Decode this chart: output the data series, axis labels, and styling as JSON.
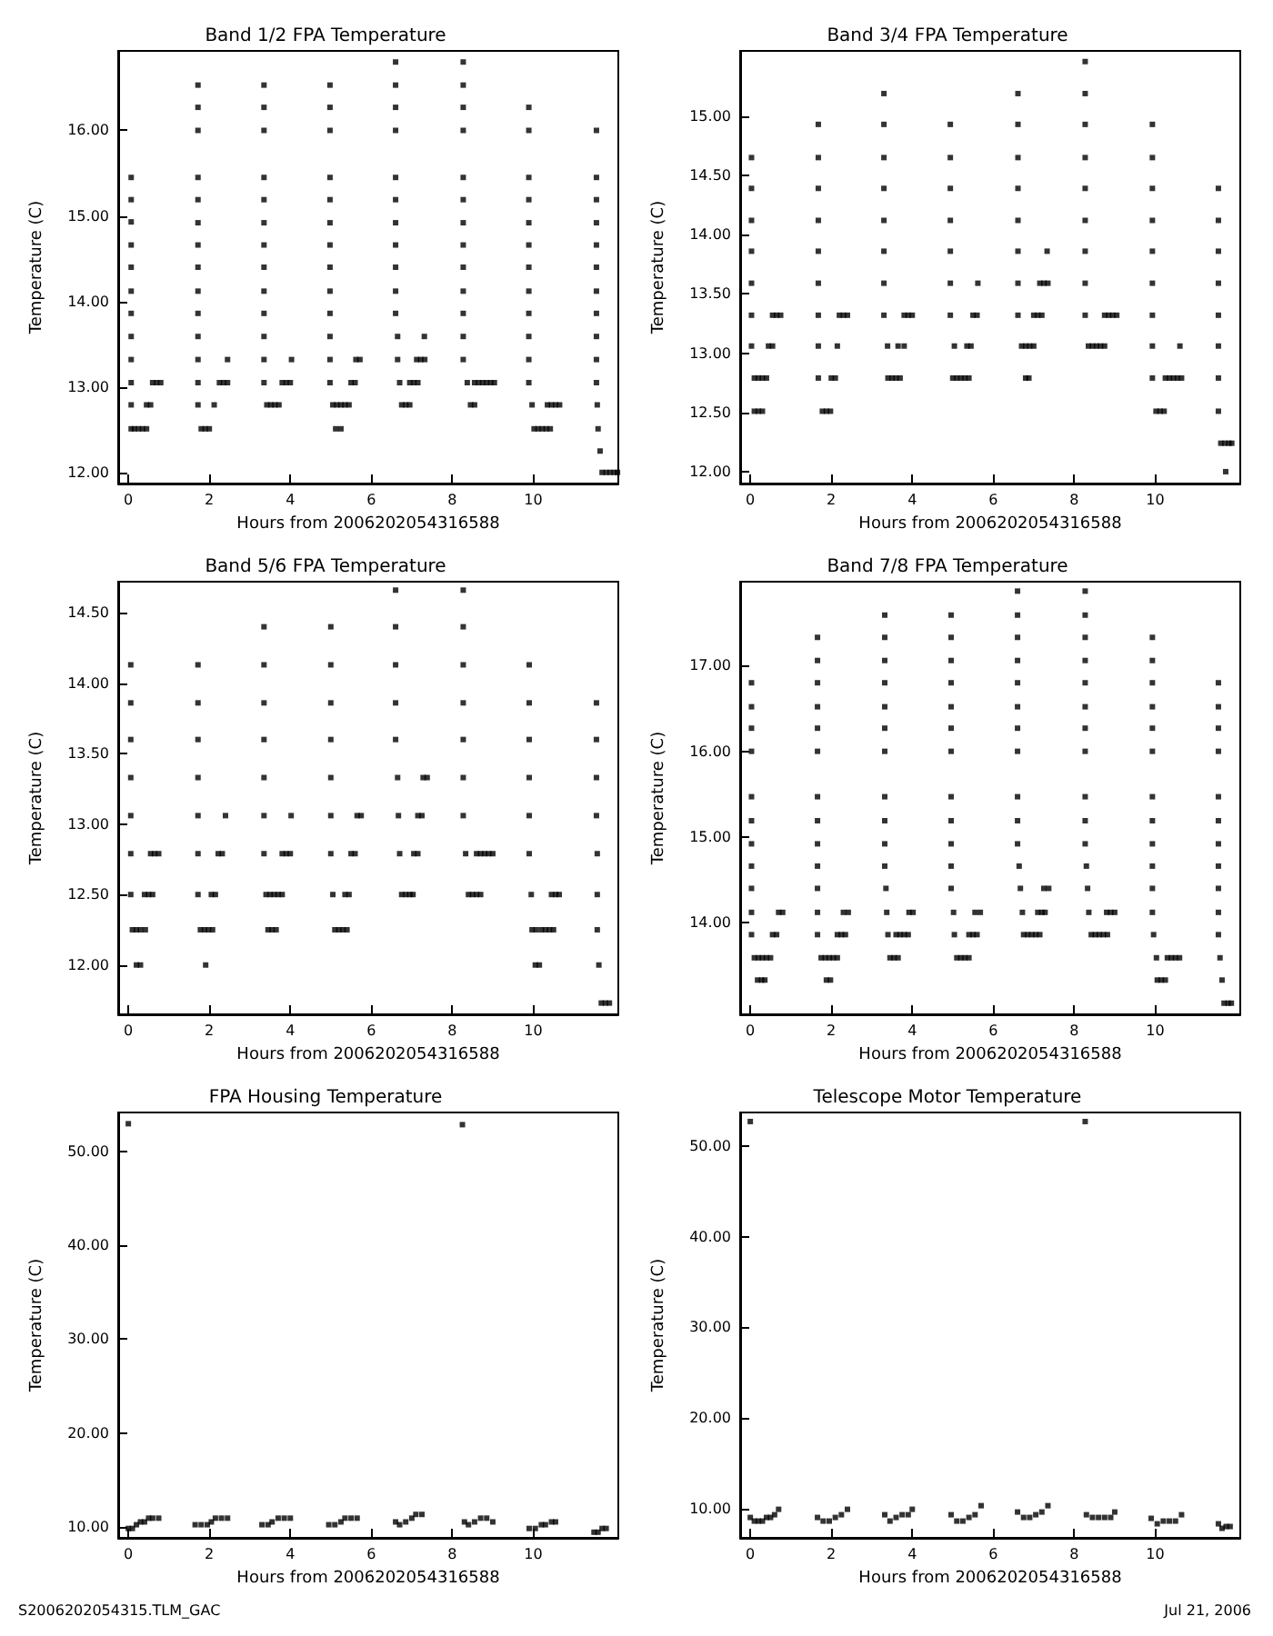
{
  "chart_data": [
    {
      "type": "scatter",
      "title": "Band 1/2 FPA Temperature",
      "xlabel": "Hours from 2006202054316588",
      "ylabel": "Temperature (C)",
      "color": "#000000",
      "marker": "square",
      "xlim": [
        -0.25,
        12.1
      ],
      "xticks": [
        0,
        2,
        4,
        6,
        8,
        10
      ],
      "ylim": [
        11.87,
        16.93
      ],
      "yticks": [
        {
          "value": 12,
          "label": "12.00"
        },
        {
          "value": 13,
          "label": "13.00"
        },
        {
          "value": 14,
          "label": "14.00"
        },
        {
          "value": 15,
          "label": "15.00"
        },
        {
          "value": 16,
          "label": "16.00"
        }
      ],
      "x": [
        0.07,
        0.07,
        0.07,
        0.07,
        0.07,
        0.07,
        0.07,
        0.07,
        0.07,
        0.07,
        0.07,
        0.07,
        0.15,
        0.25,
        0.35,
        0.45,
        0.45,
        0.55,
        0.6,
        0.7,
        0.8,
        1.72,
        1.72,
        1.72,
        1.72,
        1.72,
        1.72,
        1.72,
        1.72,
        1.72,
        1.72,
        1.72,
        1.72,
        1.72,
        1.72,
        1.8,
        1.9,
        2.0,
        2.12,
        2.25,
        2.35,
        2.45,
        2.45,
        3.35,
        3.35,
        3.35,
        3.35,
        3.35,
        3.35,
        3.35,
        3.35,
        3.35,
        3.35,
        3.35,
        3.35,
        3.35,
        3.42,
        3.52,
        3.62,
        3.72,
        3.8,
        3.9,
        4.0,
        4.03,
        4.98,
        4.98,
        4.98,
        4.98,
        4.98,
        4.98,
        4.98,
        4.98,
        4.98,
        4.98,
        4.98,
        4.98,
        4.98,
        5.05,
        5.15,
        5.25,
        5.35,
        5.45,
        5.12,
        5.25,
        5.5,
        5.6,
        5.62,
        5.72,
        6.6,
        6.6,
        6.6,
        6.6,
        6.6,
        6.6,
        6.6,
        6.6,
        6.6,
        6.6,
        6.6,
        6.65,
        6.65,
        6.7,
        6.75,
        6.85,
        6.95,
        6.95,
        7.05,
        7.15,
        7.12,
        7.22,
        7.32,
        7.31,
        8.27,
        8.27,
        8.27,
        8.27,
        8.27,
        8.27,
        8.27,
        8.27,
        8.27,
        8.27,
        8.27,
        8.27,
        8.27,
        8.37,
        8.45,
        8.55,
        8.55,
        8.65,
        8.75,
        8.85,
        8.95,
        9.04,
        9.89,
        9.89,
        9.89,
        9.89,
        9.89,
        9.89,
        9.89,
        9.89,
        9.89,
        9.89,
        9.89,
        9.89,
        9.97,
        10.02,
        10.12,
        10.22,
        10.32,
        10.42,
        10.35,
        10.45,
        10.55,
        10.65,
        11.56,
        11.56,
        11.56,
        11.56,
        11.56,
        11.56,
        11.56,
        11.56,
        11.56,
        11.56,
        11.56,
        11.58,
        11.6,
        11.65,
        11.7,
        11.8,
        11.9,
        12.0,
        12.08
      ],
      "values": [
        15.45,
        15.19,
        14.93,
        14.66,
        14.4,
        14.12,
        13.86,
        13.59,
        13.32,
        13.05,
        12.79,
        12.51,
        12.51,
        12.51,
        12.51,
        12.51,
        12.79,
        12.79,
        13.05,
        13.05,
        13.05,
        16.53,
        16.27,
        16.0,
        15.45,
        15.19,
        14.92,
        14.66,
        14.4,
        14.12,
        13.86,
        13.59,
        13.32,
        13.05,
        12.79,
        12.51,
        12.51,
        12.51,
        12.79,
        13.05,
        13.05,
        13.05,
        13.32,
        16.53,
        16.27,
        16.0,
        15.45,
        15.19,
        14.92,
        14.66,
        14.4,
        14.12,
        13.86,
        13.59,
        13.32,
        13.05,
        12.79,
        12.79,
        12.79,
        12.79,
        13.05,
        13.05,
        13.05,
        13.32,
        16.53,
        16.27,
        16.0,
        15.45,
        15.19,
        14.92,
        14.66,
        14.4,
        14.12,
        13.86,
        13.59,
        13.32,
        13.05,
        12.79,
        12.79,
        12.79,
        12.79,
        12.79,
        12.51,
        12.51,
        13.05,
        13.05,
        13.32,
        13.32,
        16.8,
        16.53,
        16.27,
        16.0,
        15.45,
        15.19,
        14.92,
        14.66,
        14.4,
        14.12,
        13.86,
        13.59,
        13.32,
        13.05,
        12.79,
        12.79,
        12.79,
        13.05,
        13.05,
        13.05,
        13.32,
        13.32,
        13.32,
        13.59,
        16.8,
        16.53,
        16.27,
        16.0,
        15.45,
        15.19,
        14.92,
        14.66,
        14.4,
        14.12,
        13.86,
        13.59,
        13.32,
        13.05,
        12.79,
        12.79,
        13.05,
        13.05,
        13.05,
        13.05,
        13.05,
        13.05,
        16.27,
        16.0,
        15.45,
        15.19,
        14.92,
        14.66,
        14.4,
        14.12,
        13.86,
        13.59,
        13.32,
        13.05,
        12.79,
        12.51,
        12.51,
        12.51,
        12.51,
        12.51,
        12.79,
        12.79,
        12.79,
        12.79,
        16.0,
        15.45,
        15.19,
        14.92,
        14.66,
        14.4,
        14.12,
        13.86,
        13.59,
        13.32,
        13.05,
        12.79,
        12.51,
        12.25,
        12.0,
        12.0,
        12.0,
        12.0,
        12.0
      ]
    },
    {
      "type": "scatter",
      "title": "Band 3/4 FPA Temperature",
      "xlabel": "Hours from 2006202054316588",
      "ylabel": "Temperature (C)",
      "color": "#000000",
      "marker": "square",
      "xlim": [
        -0.25,
        12.1
      ],
      "xticks": [
        0,
        2,
        4,
        6,
        8,
        10
      ],
      "ylim": [
        11.9,
        15.55
      ],
      "yticks": [
        {
          "value": 12,
          "label": "12.00"
        },
        {
          "value": 12.5,
          "label": "12.50"
        },
        {
          "value": 13,
          "label": "13.00"
        },
        {
          "value": 13.5,
          "label": "13.50"
        },
        {
          "value": 14,
          "label": "14.00"
        },
        {
          "value": 14.5,
          "label": "14.50"
        },
        {
          "value": 15,
          "label": "15.00"
        }
      ],
      "x": [
        0.03,
        0.03,
        0.03,
        0.03,
        0.03,
        0.03,
        0.03,
        0.1,
        0.2,
        0.3,
        0.4,
        0.1,
        0.2,
        0.3,
        0.45,
        0.55,
        0.55,
        0.65,
        0.75,
        1.68,
        1.68,
        1.68,
        1.68,
        1.68,
        1.68,
        1.68,
        1.68,
        1.68,
        1.78,
        1.88,
        1.98,
        2.0,
        2.1,
        2.15,
        2.2,
        2.3,
        2.4,
        3.3,
        3.3,
        3.3,
        3.3,
        3.3,
        3.3,
        3.3,
        3.3,
        3.39,
        3.4,
        3.5,
        3.6,
        3.7,
        3.65,
        3.8,
        3.8,
        3.9,
        4.0,
        4.94,
        4.94,
        4.94,
        4.94,
        4.94,
        4.94,
        4.94,
        5.04,
        5.0,
        5.1,
        5.2,
        5.3,
        5.4,
        5.35,
        5.45,
        5.5,
        5.6,
        5.62,
        6.61,
        6.61,
        6.61,
        6.61,
        6.61,
        6.61,
        6.61,
        6.61,
        6.7,
        6.8,
        6.9,
        7.0,
        6.8,
        6.88,
        7.0,
        7.1,
        7.2,
        7.15,
        7.25,
        7.35,
        7.33,
        8.27,
        8.27,
        8.27,
        8.27,
        8.27,
        8.27,
        8.27,
        8.27,
        8.27,
        8.35,
        8.45,
        8.55,
        8.65,
        8.75,
        8.75,
        8.85,
        8.95,
        9.05,
        9.93,
        9.93,
        9.93,
        9.93,
        9.93,
        9.93,
        9.93,
        9.93,
        9.93,
        10.02,
        10.12,
        10.22,
        10.25,
        10.35,
        10.45,
        10.55,
        10.65,
        10.61,
        11.56,
        11.56,
        11.56,
        11.56,
        11.56,
        11.56,
        11.56,
        11.56,
        11.62,
        11.72,
        11.82,
        11.89,
        11.74
      ],
      "values": [
        14.65,
        14.39,
        14.12,
        13.86,
        13.59,
        13.32,
        13.06,
        12.79,
        12.79,
        12.79,
        12.79,
        12.51,
        12.51,
        12.51,
        13.06,
        13.06,
        13.32,
        13.32,
        13.32,
        14.93,
        14.65,
        14.39,
        14.12,
        13.86,
        13.59,
        13.32,
        13.06,
        12.79,
        12.51,
        12.51,
        12.51,
        12.79,
        12.79,
        13.06,
        13.32,
        13.32,
        13.32,
        15.19,
        14.93,
        14.65,
        14.39,
        14.12,
        13.86,
        13.59,
        13.32,
        13.06,
        12.79,
        12.79,
        12.79,
        12.79,
        13.06,
        13.06,
        13.32,
        13.32,
        13.32,
        14.93,
        14.65,
        14.39,
        14.12,
        13.86,
        13.59,
        13.32,
        13.06,
        12.79,
        12.79,
        12.79,
        12.79,
        12.79,
        13.06,
        13.06,
        13.32,
        13.32,
        13.59,
        15.19,
        14.93,
        14.65,
        14.39,
        14.12,
        13.86,
        13.59,
        13.32,
        13.06,
        13.06,
        13.06,
        13.06,
        12.79,
        12.79,
        13.32,
        13.32,
        13.32,
        13.59,
        13.59,
        13.59,
        13.86,
        15.46,
        15.19,
        14.93,
        14.65,
        14.39,
        14.12,
        13.86,
        13.59,
        13.32,
        13.06,
        13.06,
        13.06,
        13.06,
        13.06,
        13.32,
        13.32,
        13.32,
        13.32,
        14.93,
        14.65,
        14.39,
        14.12,
        13.86,
        13.59,
        13.32,
        13.06,
        12.79,
        12.51,
        12.51,
        12.51,
        12.79,
        12.79,
        12.79,
        12.79,
        12.79,
        13.06,
        14.39,
        14.12,
        13.86,
        13.59,
        13.32,
        13.06,
        12.79,
        12.51,
        12.24,
        12.24,
        12.24,
        12.24,
        12.0
      ]
    },
    {
      "type": "scatter",
      "title": "Band 5/6 FPA Temperature",
      "xlabel": "Hours from 2006202054316588",
      "ylabel": "Temperature (C)",
      "color": "#000000",
      "marker": "square",
      "xlim": [
        -0.25,
        12.1
      ],
      "xticks": [
        0,
        2,
        4,
        6,
        8,
        10
      ],
      "ylim": [
        11.65,
        14.72
      ],
      "yticks": [
        {
          "value": 12,
          "label": "12.00"
        },
        {
          "value": 12.5,
          "label": "12.50"
        },
        {
          "value": 13,
          "label": "13.00"
        },
        {
          "value": 13.5,
          "label": "13.50"
        },
        {
          "value": 14,
          "label": "14.00"
        },
        {
          "value": 14.5,
          "label": "14.50"
        }
      ],
      "x": [
        0.06,
        0.06,
        0.06,
        0.06,
        0.06,
        0.06,
        0.06,
        0.1,
        0.2,
        0.3,
        0.42,
        0.2,
        0.3,
        0.4,
        0.5,
        0.6,
        0.55,
        0.65,
        0.75,
        1.72,
        1.72,
        1.72,
        1.72,
        1.72,
        1.72,
        1.72,
        1.78,
        1.88,
        1.98,
        2.08,
        1.91,
        2.05,
        2.15,
        2.22,
        2.32,
        2.4,
        3.35,
        3.35,
        3.35,
        3.35,
        3.35,
        3.35,
        3.35,
        3.4,
        3.5,
        3.6,
        3.7,
        3.8,
        3.45,
        3.55,
        3.65,
        3.8,
        3.9,
        4.0,
        4.02,
        5.0,
        5.0,
        5.0,
        5.0,
        5.0,
        5.0,
        5.0,
        5.05,
        5.1,
        5.2,
        5.3,
        5.4,
        5.35,
        5.45,
        5.5,
        5.6,
        5.65,
        5.75,
        6.6,
        6.6,
        6.6,
        6.6,
        6.6,
        6.65,
        6.67,
        6.7,
        6.75,
        6.85,
        6.95,
        7.03,
        7.05,
        7.15,
        7.15,
        7.25,
        7.28,
        7.38,
        8.27,
        8.27,
        8.27,
        8.27,
        8.27,
        8.27,
        8.27,
        8.33,
        8.4,
        8.5,
        8.6,
        8.7,
        8.6,
        8.7,
        8.8,
        8.9,
        9.0,
        9.9,
        9.9,
        9.9,
        9.9,
        9.9,
        9.9,
        9.95,
        9.97,
        10.07,
        10.05,
        10.15,
        10.2,
        10.3,
        10.4,
        10.5,
        10.45,
        10.55,
        10.64,
        11.56,
        11.56,
        11.56,
        11.56,
        11.58,
        11.58,
        11.58,
        11.62,
        11.68,
        11.78,
        11.88
      ],
      "values": [
        14.13,
        13.86,
        13.6,
        13.33,
        13.06,
        12.79,
        12.5,
        12.25,
        12.25,
        12.25,
        12.25,
        12.0,
        12.0,
        12.5,
        12.5,
        12.5,
        12.79,
        12.79,
        12.79,
        14.13,
        13.86,
        13.6,
        13.33,
        13.06,
        12.79,
        12.5,
        12.25,
        12.25,
        12.25,
        12.25,
        12.0,
        12.5,
        12.5,
        12.79,
        12.79,
        13.06,
        14.4,
        14.13,
        13.86,
        13.6,
        13.33,
        13.06,
        12.79,
        12.5,
        12.5,
        12.5,
        12.5,
        12.5,
        12.25,
        12.25,
        12.25,
        12.79,
        12.79,
        12.79,
        13.06,
        14.4,
        14.13,
        13.86,
        13.6,
        13.33,
        13.06,
        12.79,
        12.5,
        12.25,
        12.25,
        12.25,
        12.25,
        12.5,
        12.5,
        12.79,
        12.79,
        13.06,
        13.06,
        14.66,
        14.4,
        14.13,
        13.86,
        13.6,
        13.33,
        13.06,
        12.79,
        12.5,
        12.5,
        12.5,
        12.5,
        12.79,
        12.79,
        13.06,
        13.06,
        13.33,
        13.33,
        14.66,
        14.4,
        14.13,
        13.86,
        13.6,
        13.33,
        13.06,
        12.79,
        12.5,
        12.5,
        12.5,
        12.5,
        12.79,
        12.79,
        12.79,
        12.79,
        12.79,
        14.13,
        13.86,
        13.6,
        13.33,
        13.06,
        12.79,
        12.5,
        12.25,
        12.25,
        12.0,
        12.0,
        12.25,
        12.25,
        12.25,
        12.25,
        12.5,
        12.5,
        12.5,
        13.86,
        13.6,
        13.33,
        13.06,
        12.79,
        12.5,
        12.25,
        12.0,
        11.73,
        11.73,
        11.73
      ]
    },
    {
      "type": "scatter",
      "title": "Band 7/8 FPA Temperature",
      "xlabel": "Hours from 2006202054316588",
      "ylabel": "Temperature (C)",
      "color": "#000000",
      "marker": "square",
      "xlim": [
        -0.25,
        12.1
      ],
      "xticks": [
        0,
        2,
        4,
        6,
        8,
        10
      ],
      "ylim": [
        12.93,
        17.98
      ],
      "yticks": [
        {
          "value": 14,
          "label": "14.00"
        },
        {
          "value": 15,
          "label": "15.00"
        },
        {
          "value": 16,
          "label": "16.00"
        },
        {
          "value": 17,
          "label": "17.00"
        }
      ],
      "x": [
        0.03,
        0.03,
        0.03,
        0.03,
        0.03,
        0.03,
        0.03,
        0.03,
        0.03,
        0.03,
        0.03,
        0.1,
        0.2,
        0.3,
        0.4,
        0.5,
        0.18,
        0.28,
        0.36,
        0.55,
        0.65,
        0.7,
        0.8,
        1.66,
        1.66,
        1.66,
        1.66,
        1.66,
        1.66,
        1.66,
        1.66,
        1.66,
        1.66,
        1.66,
        1.66,
        1.66,
        1.75,
        1.85,
        1.95,
        2.05,
        2.15,
        1.88,
        1.98,
        2.15,
        2.25,
        2.35,
        2.3,
        2.42,
        3.32,
        3.32,
        3.32,
        3.32,
        3.32,
        3.32,
        3.32,
        3.32,
        3.32,
        3.32,
        3.32,
        3.35,
        3.37,
        3.4,
        3.45,
        3.55,
        3.65,
        3.6,
        3.7,
        3.8,
        3.9,
        3.92,
        4.02,
        4.96,
        4.96,
        4.96,
        4.96,
        4.96,
        4.96,
        4.96,
        4.96,
        4.96,
        4.96,
        4.96,
        4.96,
        5.02,
        5.04,
        5.1,
        5.2,
        5.3,
        5.4,
        5.4,
        5.5,
        5.6,
        5.55,
        5.68,
        6.6,
        6.6,
        6.6,
        6.6,
        6.6,
        6.6,
        6.6,
        6.6,
        6.6,
        6.6,
        6.6,
        6.64,
        6.67,
        6.72,
        6.75,
        6.85,
        6.95,
        7.05,
        7.15,
        7.1,
        7.2,
        7.28,
        7.25,
        7.37,
        8.27,
        8.27,
        8.27,
        8.27,
        8.27,
        8.27,
        8.27,
        8.27,
        8.27,
        8.27,
        8.27,
        8.3,
        8.33,
        8.36,
        8.42,
        8.52,
        8.62,
        8.72,
        8.82,
        8.8,
        8.9,
        9.0,
        9.93,
        9.93,
        9.93,
        9.93,
        9.93,
        9.93,
        9.93,
        9.93,
        9.93,
        9.93,
        9.93,
        9.93,
        9.96,
        10.03,
        10.05,
        10.15,
        10.25,
        10.3,
        10.4,
        10.5,
        10.6,
        11.56,
        11.56,
        11.56,
        11.56,
        11.56,
        11.56,
        11.56,
        11.56,
        11.56,
        11.56,
        11.56,
        11.6,
        11.65,
        11.7,
        11.8,
        11.88
      ],
      "values": [
        16.8,
        16.52,
        16.27,
        16.0,
        15.47,
        15.19,
        14.92,
        14.66,
        14.4,
        14.12,
        13.86,
        13.59,
        13.59,
        13.59,
        13.59,
        13.59,
        13.33,
        13.33,
        13.33,
        13.86,
        13.86,
        14.12,
        14.12,
        17.33,
        17.06,
        16.8,
        16.52,
        16.27,
        16.0,
        15.47,
        15.19,
        14.92,
        14.66,
        14.4,
        14.12,
        13.86,
        13.59,
        13.59,
        13.59,
        13.59,
        13.59,
        13.33,
        13.33,
        13.86,
        13.86,
        13.86,
        14.12,
        14.12,
        17.59,
        17.33,
        17.06,
        16.8,
        16.52,
        16.27,
        16.0,
        15.47,
        15.19,
        14.92,
        14.66,
        14.4,
        14.12,
        13.86,
        13.59,
        13.59,
        13.59,
        13.86,
        13.86,
        13.86,
        13.86,
        14.12,
        14.12,
        17.59,
        17.33,
        17.06,
        16.8,
        16.52,
        16.27,
        16.0,
        15.47,
        15.19,
        14.92,
        14.66,
        14.4,
        14.12,
        13.86,
        13.59,
        13.59,
        13.59,
        13.59,
        13.86,
        13.86,
        13.86,
        14.12,
        14.12,
        17.87,
        17.59,
        17.33,
        17.06,
        16.8,
        16.52,
        16.27,
        16.0,
        15.47,
        15.19,
        14.92,
        14.66,
        14.4,
        14.12,
        13.86,
        13.86,
        13.86,
        13.86,
        13.86,
        14.12,
        14.12,
        14.12,
        14.4,
        14.4,
        17.87,
        17.59,
        17.33,
        17.06,
        16.8,
        16.52,
        16.27,
        16.0,
        15.47,
        15.19,
        14.92,
        14.66,
        14.4,
        14.12,
        13.86,
        13.86,
        13.86,
        13.86,
        13.86,
        14.12,
        14.12,
        14.12,
        17.33,
        17.06,
        16.8,
        16.52,
        16.27,
        16.0,
        15.47,
        15.19,
        14.92,
        14.66,
        14.4,
        14.12,
        13.86,
        13.59,
        13.33,
        13.33,
        13.33,
        13.59,
        13.59,
        13.59,
        13.59,
        16.8,
        16.52,
        16.27,
        16.0,
        15.47,
        15.19,
        14.92,
        14.66,
        14.4,
        14.12,
        13.86,
        13.59,
        13.33,
        13.06,
        13.06,
        13.06
      ]
    },
    {
      "type": "scatter",
      "title": "FPA Housing Temperature",
      "xlabel": "Hours from 2006202054316588",
      "ylabel": "Temperature (C)",
      "color": "#000000",
      "marker": "square",
      "annotations": [
        "S2006202054315.TLM_GAC"
      ],
      "xlim": [
        -0.25,
        12.1
      ],
      "xticks": [
        0,
        2,
        4,
        6,
        8,
        10
      ],
      "ylim": [
        8.8,
        54.2
      ],
      "yticks": [
        {
          "value": 10,
          "label": "10.00"
        },
        {
          "value": 20,
          "label": "20.00"
        },
        {
          "value": 30,
          "label": "30.00"
        },
        {
          "value": 40,
          "label": "40.00"
        },
        {
          "value": 50,
          "label": "50.00"
        }
      ],
      "x": [
        0.0,
        0.0,
        0.1,
        0.2,
        0.3,
        0.4,
        0.5,
        0.6,
        0.75,
        1.65,
        1.8,
        1.95,
        2.05,
        2.15,
        2.3,
        2.45,
        3.3,
        3.45,
        3.55,
        3.7,
        3.85,
        4.0,
        4.95,
        5.1,
        5.25,
        5.35,
        5.5,
        5.65,
        6.6,
        6.7,
        6.85,
        7.0,
        7.1,
        7.25,
        8.25,
        8.3,
        8.4,
        8.55,
        8.7,
        8.85,
        9.0,
        9.9,
        10.05,
        10.2,
        10.3,
        10.45,
        10.55,
        11.5,
        11.6,
        11.7,
        11.8
      ],
      "values": [
        53.0,
        9.8,
        9.8,
        10.2,
        10.5,
        10.5,
        10.9,
        10.9,
        10.9,
        10.2,
        10.2,
        10.2,
        10.5,
        10.9,
        10.9,
        10.9,
        10.2,
        10.2,
        10.5,
        10.9,
        10.9,
        10.9,
        10.2,
        10.2,
        10.5,
        10.9,
        10.9,
        10.9,
        10.5,
        10.2,
        10.5,
        10.9,
        11.3,
        11.3,
        52.9,
        10.5,
        10.2,
        10.5,
        10.9,
        10.9,
        10.5,
        9.8,
        9.8,
        10.2,
        10.2,
        10.5,
        10.5,
        9.4,
        9.4,
        9.8,
        9.8
      ]
    },
    {
      "type": "scatter",
      "title": "Telescope Motor Temperature",
      "xlabel": "Hours from 2006202054316588",
      "ylabel": "Temperature (C)",
      "color": "#000000",
      "marker": "square",
      "annotations": [
        "Jul 21, 2006"
      ],
      "xlim": [
        -0.25,
        12.1
      ],
      "xticks": [
        0,
        2,
        4,
        6,
        8,
        10
      ],
      "ylim": [
        6.75,
        53.7
      ],
      "yticks": [
        {
          "value": 10,
          "label": "10.00"
        },
        {
          "value": 20,
          "label": "20.00"
        },
        {
          "value": 30,
          "label": "30.00"
        },
        {
          "value": 40,
          "label": "40.00"
        },
        {
          "value": 50,
          "label": "50.00"
        }
      ],
      "x": [
        0,
        0,
        0.1,
        0.2,
        0.3,
        0.4,
        0.5,
        0.6,
        0.7,
        1.66,
        1.8,
        1.95,
        2.1,
        2.25,
        2.4,
        3.32,
        3.45,
        3.6,
        3.75,
        3.9,
        4.0,
        4.96,
        5.1,
        5.25,
        5.4,
        5.55,
        5.7,
        6.6,
        6.75,
        6.9,
        7.05,
        7.2,
        7.35,
        8.27,
        8.3,
        8.45,
        8.6,
        8.75,
        8.9,
        9.0,
        9.9,
        10.05,
        10.2,
        10.35,
        10.5,
        10.65,
        11.56,
        11.65,
        11.75,
        11.85
      ],
      "values": [
        52.7,
        9.0,
        8.6,
        8.6,
        8.6,
        9.0,
        9.0,
        9.3,
        9.9,
        9.0,
        8.6,
        8.6,
        9.0,
        9.3,
        9.9,
        9.3,
        8.6,
        9.0,
        9.3,
        9.3,
        9.9,
        9.3,
        8.6,
        8.6,
        9.0,
        9.3,
        10.3,
        9.6,
        9.0,
        9.0,
        9.3,
        9.6,
        10.3,
        52.7,
        9.3,
        9.0,
        9.0,
        9.0,
        9.0,
        9.6,
        8.9,
        8.3,
        8.6,
        8.6,
        8.6,
        9.3,
        8.3,
        7.8,
        8.0,
        8.0
      ]
    }
  ]
}
